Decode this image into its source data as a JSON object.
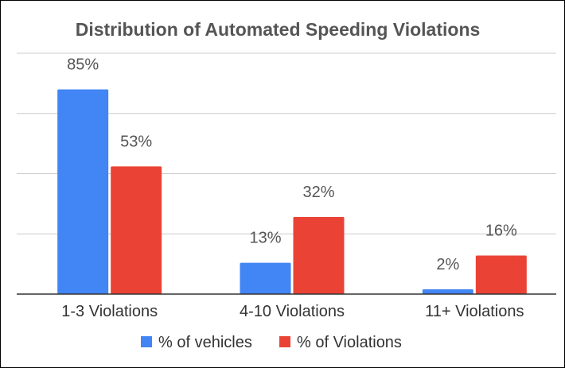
{
  "chart_data": {
    "type": "bar",
    "title": "Distribution of Automated Speeding Violations",
    "xlabel": "",
    "ylabel": "",
    "categories": [
      "1-3 Violations",
      "4-10 Violations",
      "11+ Violations"
    ],
    "series": [
      {
        "name": "% of vehicles",
        "values": [
          85,
          13,
          2
        ],
        "labels": [
          "85%",
          "13%",
          "2%"
        ],
        "color": "#4285f4"
      },
      {
        "name": "% of Violations",
        "values": [
          53,
          32,
          16
        ],
        "labels": [
          "53%",
          "32%",
          "16%"
        ],
        "color": "#ea4335"
      }
    ],
    "ylim": [
      0,
      100
    ],
    "grid": true,
    "legend_position": "bottom"
  }
}
